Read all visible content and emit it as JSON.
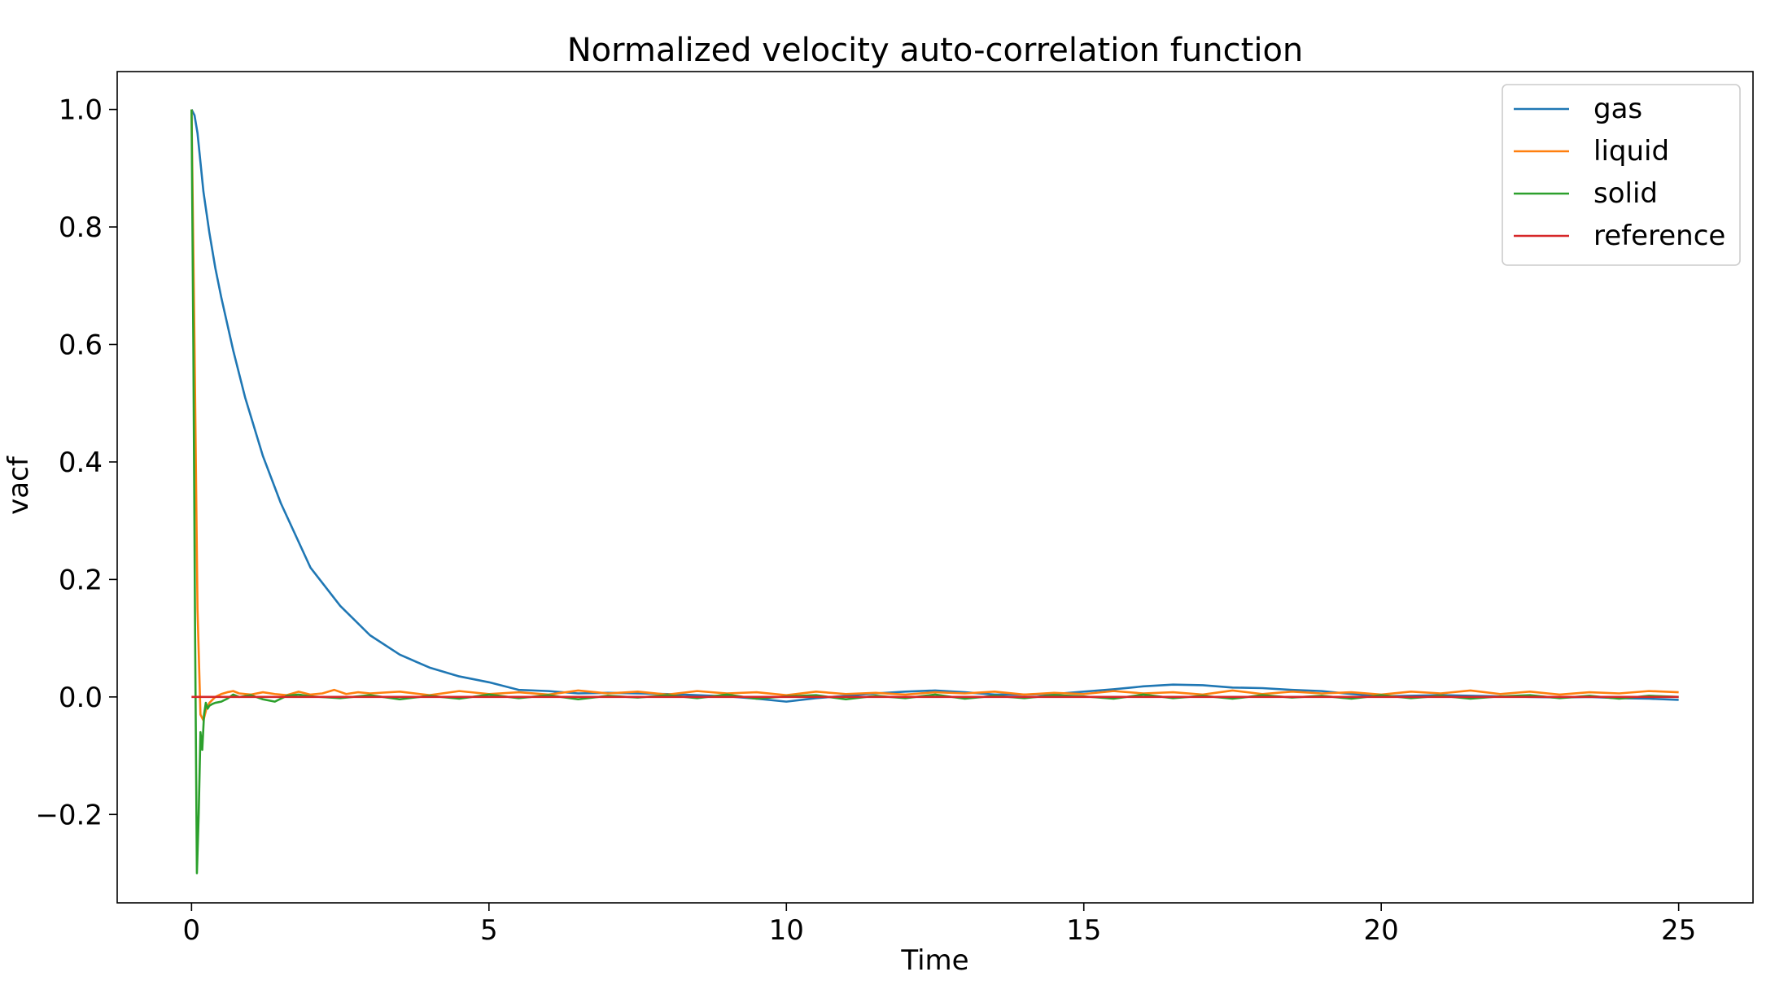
{
  "chart_data": {
    "type": "line",
    "title": "Normalized velocity auto-correlation function",
    "xlabel": "Time",
    "ylabel": "vacf",
    "xlim": [
      -1.25,
      26.25
    ],
    "ylim": [
      -0.3505,
      1.0645
    ],
    "xticks": [
      0,
      5,
      10,
      15,
      20,
      25
    ],
    "xtick_labels": [
      "0",
      "5",
      "10",
      "15",
      "20",
      "25"
    ],
    "yticks": [
      -0.2,
      0.0,
      0.2,
      0.4,
      0.6,
      0.8,
      1.0
    ],
    "ytick_labels": [
      "−0.2",
      "0.0",
      "0.2",
      "0.4",
      "0.6",
      "0.8",
      "1.0"
    ],
    "grid": false,
    "legend_position": "top-right",
    "series": [
      {
        "name": "gas",
        "color": "#1f77b4",
        "x": [
          0,
          0.05,
          0.1,
          0.15,
          0.2,
          0.3,
          0.4,
          0.5,
          0.7,
          0.9,
          1.2,
          1.5,
          2.0,
          2.5,
          3.0,
          3.5,
          4.0,
          4.5,
          5.0,
          5.5,
          6.0,
          6.5,
          7.0,
          7.5,
          8.0,
          8.5,
          9.0,
          9.5,
          10.0,
          10.5,
          11.0,
          11.5,
          12.0,
          12.5,
          13.0,
          13.5,
          14.0,
          14.5,
          15.0,
          15.5,
          16.0,
          16.5,
          17.0,
          17.5,
          18.0,
          18.5,
          19.0,
          19.5,
          20.0,
          20.5,
          21.0,
          21.5,
          22.0,
          22.5,
          23.0,
          23.5,
          24.0,
          24.5,
          25.0
        ],
        "y": [
          1.0,
          0.99,
          0.96,
          0.91,
          0.86,
          0.79,
          0.73,
          0.68,
          0.59,
          0.51,
          0.41,
          0.33,
          0.22,
          0.155,
          0.105,
          0.072,
          0.05,
          0.035,
          0.025,
          0.012,
          0.01,
          0.006,
          0.007,
          0.006,
          0.005,
          0.003,
          0.001,
          -0.003,
          -0.008,
          -0.002,
          0.002,
          0.006,
          0.009,
          0.011,
          0.008,
          0.004,
          0.004,
          0.005,
          0.009,
          0.013,
          0.018,
          0.021,
          0.02,
          0.016,
          0.015,
          0.012,
          0.01,
          0.005,
          0.001,
          0.002,
          0.003,
          0.002,
          0.001,
          0.0,
          -0.001,
          0.0,
          -0.002,
          -0.003,
          -0.005
        ]
      },
      {
        "name": "liquid",
        "color": "#ff7f0e",
        "x": [
          0,
          0.05,
          0.1,
          0.15,
          0.2,
          0.25,
          0.3,
          0.4,
          0.5,
          0.6,
          0.7,
          0.8,
          1.0,
          1.2,
          1.4,
          1.6,
          1.8,
          2.0,
          2.2,
          2.4,
          2.6,
          2.8,
          3.0,
          3.5,
          4.0,
          4.5,
          5.0,
          5.5,
          6.0,
          6.5,
          7.0,
          7.5,
          8.0,
          8.5,
          9.0,
          9.5,
          10.0,
          10.5,
          11.0,
          11.5,
          12.0,
          12.5,
          13.0,
          13.5,
          14.0,
          14.5,
          15.0,
          15.5,
          16.0,
          16.5,
          17.0,
          17.5,
          18.0,
          18.5,
          19.0,
          19.5,
          20.0,
          20.5,
          21.0,
          21.5,
          22.0,
          22.5,
          23.0,
          23.5,
          24.0,
          24.5,
          25.0
        ],
        "y": [
          1.0,
          0.6,
          0.15,
          -0.03,
          -0.04,
          -0.02,
          -0.01,
          0.0,
          0.005,
          0.008,
          0.01,
          0.006,
          0.004,
          0.008,
          0.005,
          0.003,
          0.009,
          0.004,
          0.006,
          0.012,
          0.005,
          0.008,
          0.006,
          0.009,
          0.003,
          0.01,
          0.005,
          0.008,
          0.004,
          0.011,
          0.006,
          0.009,
          0.004,
          0.01,
          0.006,
          0.008,
          0.003,
          0.009,
          0.005,
          0.007,
          0.004,
          0.008,
          0.006,
          0.009,
          0.004,
          0.007,
          0.005,
          0.01,
          0.006,
          0.008,
          0.004,
          0.011,
          0.005,
          0.009,
          0.006,
          0.008,
          0.004,
          0.009,
          0.006,
          0.011,
          0.005,
          0.009,
          0.004,
          0.008,
          0.006,
          0.01,
          0.008
        ]
      },
      {
        "name": "solid",
        "color": "#2ca02c",
        "x": [
          0,
          0.03,
          0.06,
          0.09,
          0.12,
          0.15,
          0.18,
          0.21,
          0.24,
          0.27,
          0.3,
          0.35,
          0.4,
          0.5,
          0.6,
          0.7,
          0.8,
          1.0,
          1.2,
          1.4,
          1.6,
          1.8,
          2.0,
          2.5,
          3.0,
          3.5,
          4.0,
          4.5,
          5.0,
          5.5,
          6.0,
          6.5,
          7.0,
          7.5,
          8.0,
          8.5,
          9.0,
          9.5,
          10.0,
          10.5,
          11.0,
          11.5,
          12.0,
          12.5,
          13.0,
          13.5,
          14.0,
          14.5,
          15.0,
          15.5,
          16.0,
          16.5,
          17.0,
          17.5,
          18.0,
          18.5,
          19.0,
          19.5,
          20.0,
          20.5,
          21.0,
          21.5,
          22.0,
          22.5,
          23.0,
          23.5,
          24.0,
          24.5,
          25.0
        ],
        "y": [
          1.0,
          0.6,
          0.1,
          -0.3,
          -0.2,
          -0.06,
          -0.09,
          -0.03,
          -0.01,
          -0.02,
          -0.015,
          -0.012,
          -0.01,
          -0.008,
          -0.003,
          0.004,
          0.0,
          0.003,
          -0.004,
          -0.008,
          0.002,
          0.004,
          0.001,
          -0.002,
          0.003,
          -0.004,
          0.002,
          -0.003,
          0.004,
          -0.002,
          0.003,
          -0.004,
          0.002,
          -0.001,
          0.003,
          -0.002,
          0.004,
          -0.003,
          0.001,
          0.003,
          -0.004,
          0.002,
          -0.002,
          0.004,
          -0.003,
          0.002,
          -0.002,
          0.003,
          0.001,
          -0.003,
          0.004,
          -0.002,
          0.002,
          -0.003,
          0.003,
          -0.001,
          0.002,
          -0.003,
          0.003,
          -0.002,
          0.002,
          -0.003,
          0.001,
          0.003,
          -0.002,
          0.002,
          -0.003,
          0.002,
          0.0
        ]
      },
      {
        "name": "reference",
        "color": "#d62728",
        "x": [
          0,
          25
        ],
        "y": [
          0,
          0
        ]
      }
    ]
  }
}
